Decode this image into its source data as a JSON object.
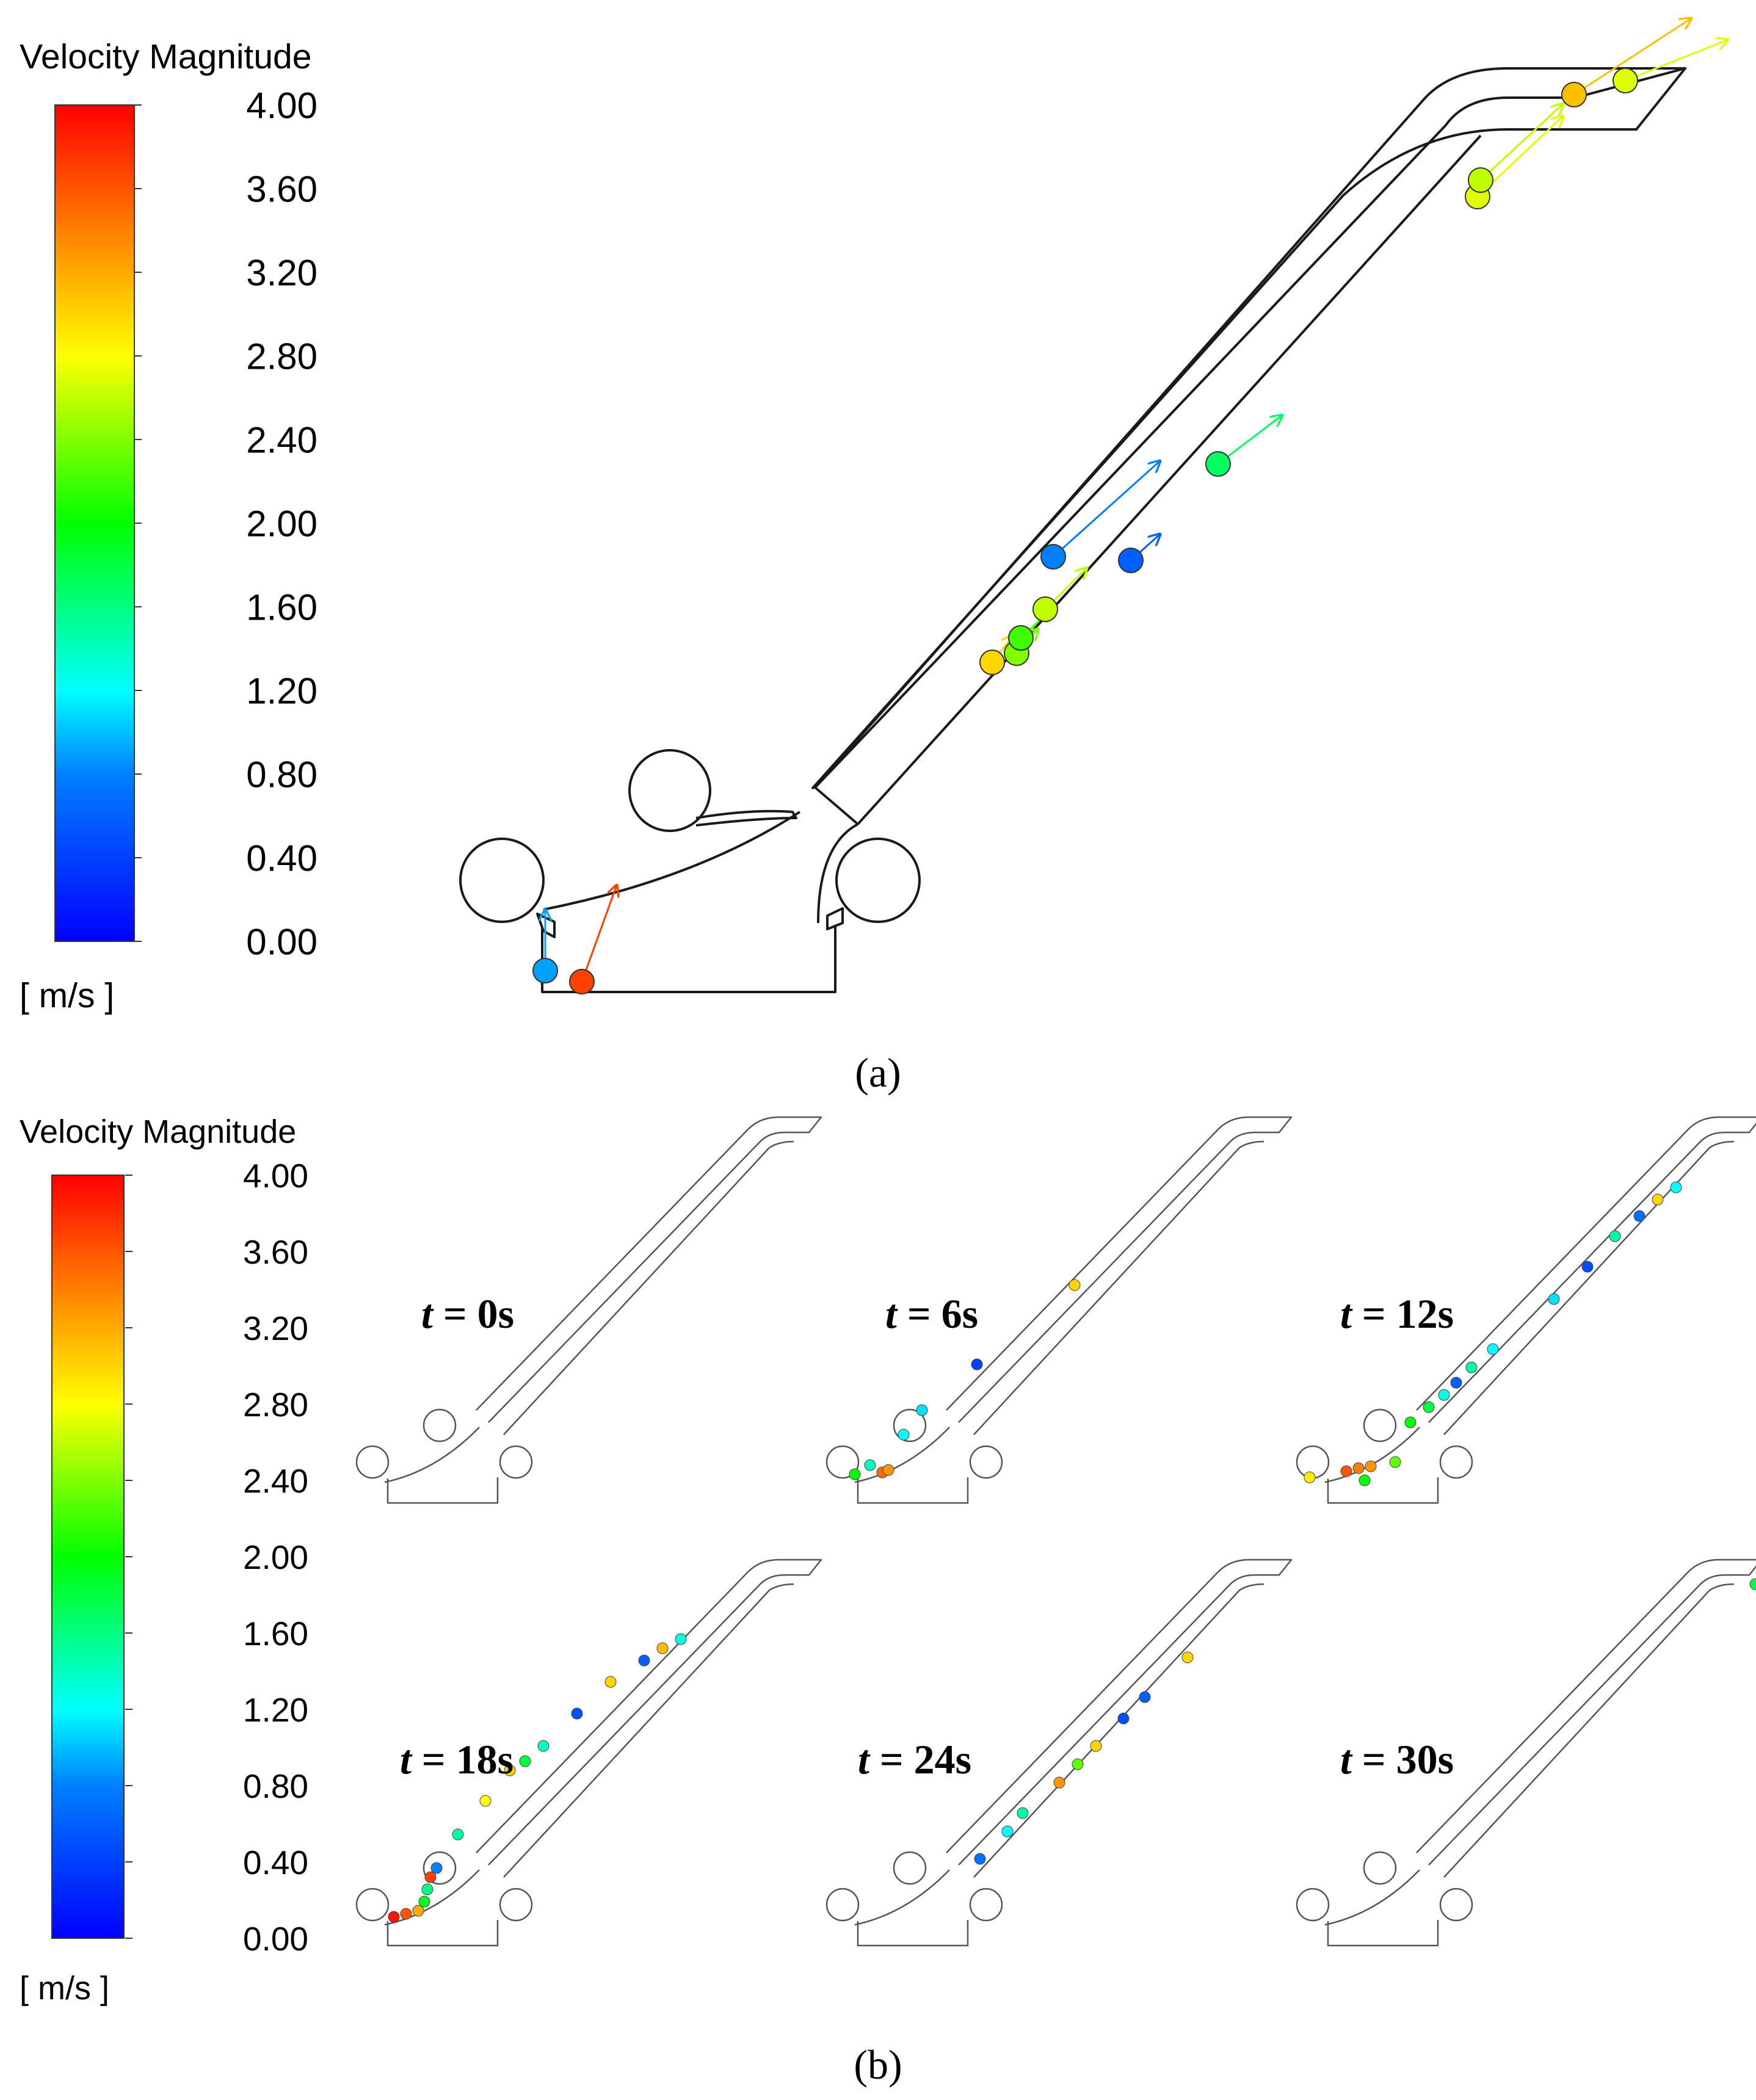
{
  "colors": {
    "scale_stops": [
      "#0000ff",
      "#0080ff",
      "#00ffff",
      "#00ff00",
      "#ffff00",
      "#ff8000",
      "#ff0000"
    ],
    "outline": "#1a1a1a"
  },
  "figure_a": {
    "legend_title": "Velocity Magnitude",
    "legend_unit": "[ m/s ]",
    "ticks": [
      "4.00",
      "3.60",
      "3.20",
      "2.80",
      "2.40",
      "2.00",
      "1.60",
      "1.20",
      "0.80",
      "0.40",
      "0.00"
    ],
    "caption": "(a)",
    "particles": [
      {
        "speed": 0.9
      },
      {
        "speed": 3.7
      },
      {
        "speed": 3.0
      },
      {
        "speed": 2.4
      },
      {
        "speed": 2.2
      },
      {
        "speed": 2.6
      },
      {
        "speed": 0.8
      },
      {
        "speed": 0.6
      },
      {
        "speed": 1.7
      },
      {
        "speed": 2.7
      },
      {
        "speed": 2.6
      },
      {
        "speed": 3.1
      },
      {
        "speed": 2.7
      }
    ]
  },
  "figure_b": {
    "legend_title": "Velocity Magnitude",
    "legend_unit": "[ m/s ]",
    "ticks": [
      "4.00",
      "3.60",
      "3.20",
      "2.80",
      "2.40",
      "2.00",
      "1.60",
      "1.20",
      "0.80",
      "0.40",
      "0.00"
    ],
    "caption": "(b)",
    "panels": [
      {
        "label_t": "t",
        "label_rest": " = 0s"
      },
      {
        "label_t": "t",
        "label_rest": " = 6s"
      },
      {
        "label_t": "t",
        "label_rest": " = 12s"
      },
      {
        "label_t": "t",
        "label_rest": " = 18s"
      },
      {
        "label_t": "t",
        "label_rest": " = 24s"
      },
      {
        "label_t": "t",
        "label_rest": " = 30s"
      }
    ]
  }
}
